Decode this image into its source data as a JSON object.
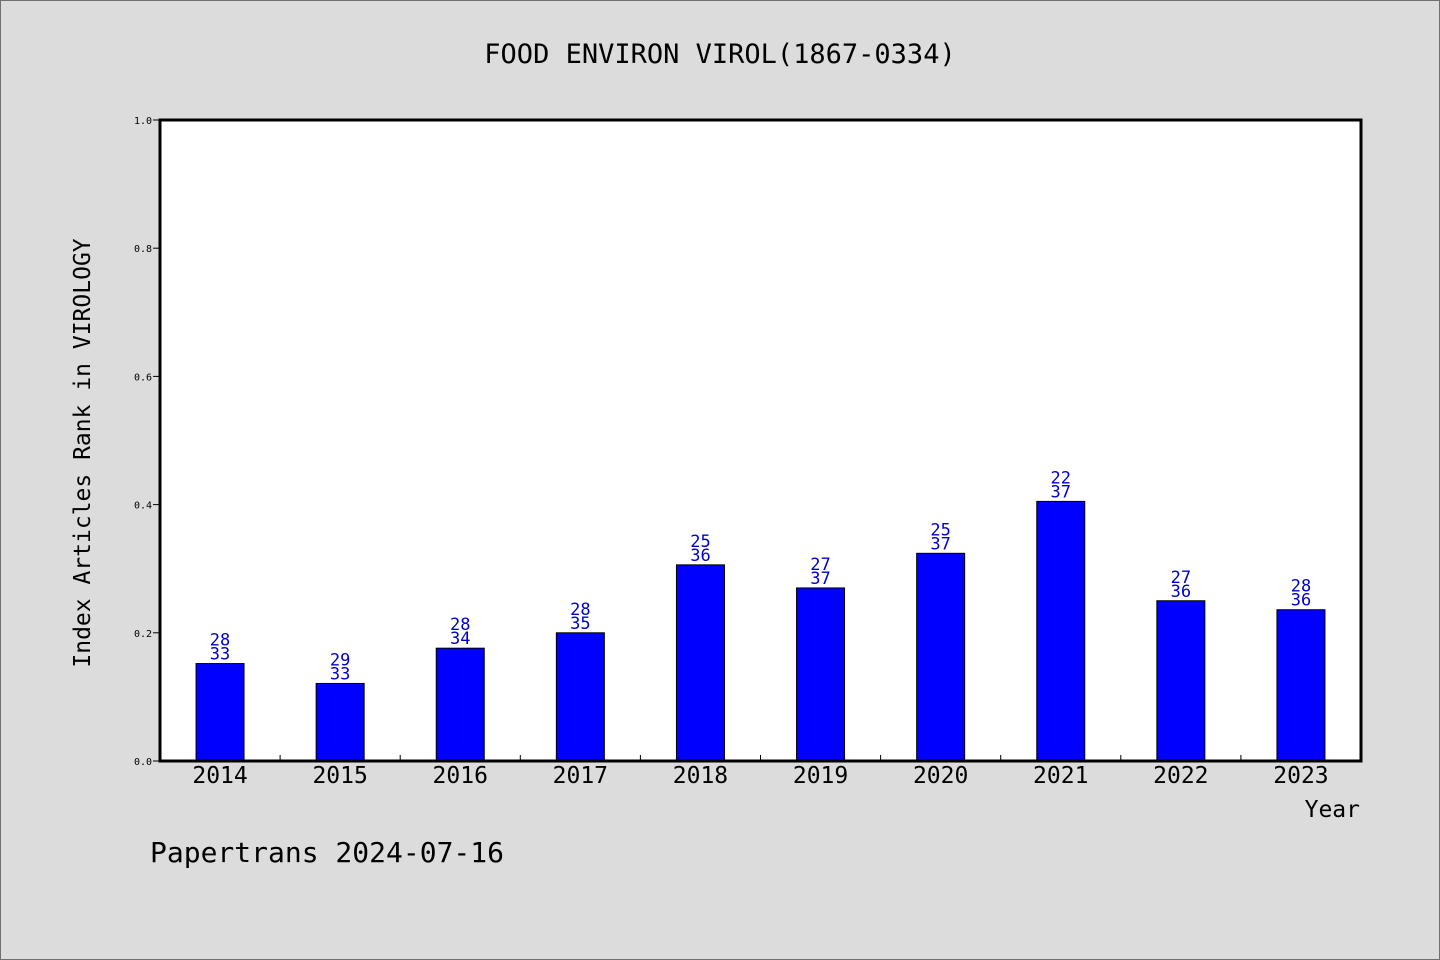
{
  "chart_data": {
    "type": "bar",
    "title": "FOOD ENVIRON VIROL(1867-0334)",
    "xlabel": "Year",
    "ylabel": "Index Articles Rank in VIROLOGY",
    "categories": [
      "2014",
      "2015",
      "2016",
      "2017",
      "2018",
      "2019",
      "2020",
      "2021",
      "2022",
      "2023"
    ],
    "values": [
      0.152,
      0.121,
      0.176,
      0.2,
      0.306,
      0.27,
      0.324,
      0.405,
      0.25,
      0.236
    ],
    "rank_labels": [
      "28",
      "29",
      "28",
      "28",
      "25",
      "27",
      "25",
      "22",
      "27",
      "28"
    ],
    "total_labels": [
      "33",
      "33",
      "34",
      "35",
      "36",
      "37",
      "37",
      "37",
      "36",
      "36"
    ],
    "ylim": [
      0,
      1.0
    ],
    "yticks": [
      "0.0",
      "0.2",
      "0.4",
      "0.6",
      "0.8",
      "1.0"
    ],
    "bar_color": "#0000ff",
    "label_color": "#0000cc",
    "grid": false
  },
  "footer": {
    "credit": "Papertrans 2024-07-16"
  }
}
